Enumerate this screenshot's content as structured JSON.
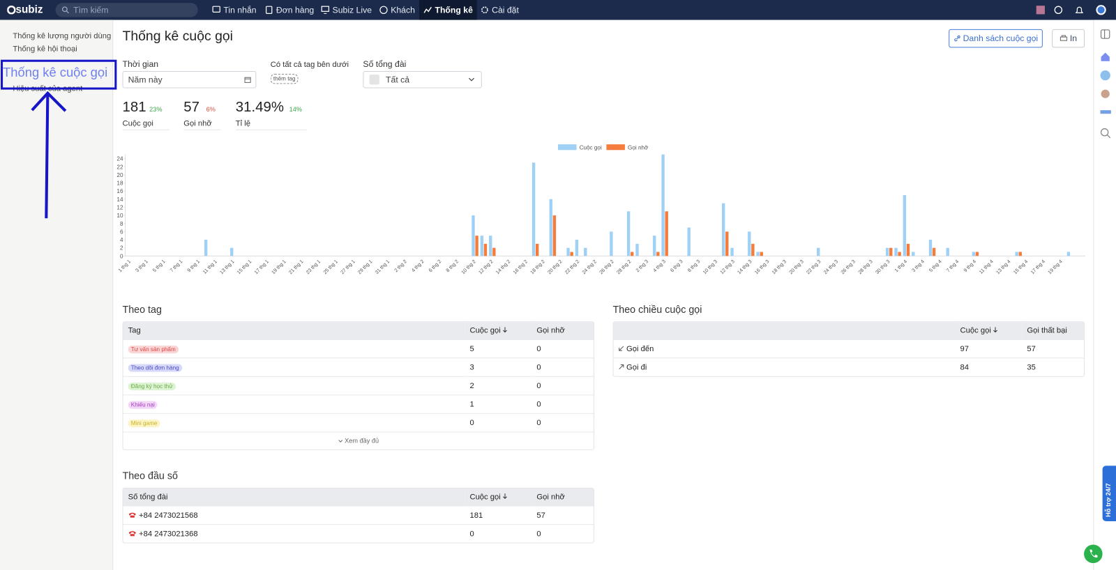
{
  "nav": {
    "logo": "subiz",
    "search": "Tìm kiếm",
    "items": [
      "Tin nhắn",
      "Đơn hàng",
      "Subiz Live",
      "Khách",
      "Thống kê",
      "Cài đặt"
    ]
  },
  "sidebar": {
    "items": [
      "Thống kê lượng người dùng",
      "Thống kê hội thoại",
      "Thống kê cuộc gọi",
      "Hiệu suất của agent"
    ]
  },
  "header": {
    "title": "Thống kê cuộc gọi",
    "buttons": [
      "Danh sách cuộc gọi",
      "In"
    ]
  },
  "filters": {
    "time": {
      "label": "Thời gian",
      "value": "Năm này"
    },
    "tags": {
      "label": "Có tất cả tag bên dưới",
      "button": "thêm tag"
    },
    "line": {
      "label": "Số tổng đài",
      "value": "Tất cả"
    }
  },
  "stats": [
    {
      "value": "181",
      "change": "23%",
      "label": "Cuộc gọi"
    },
    {
      "value": "57",
      "change": "6%",
      "label": "Gọi nhỡ"
    },
    {
      "value": "31.49%",
      "change": "14%",
      "label": "Tỉ lệ"
    }
  ],
  "chart_data": {
    "type": "bar",
    "categories": [
      "1 thg 1",
      null,
      "3 thg 1",
      null,
      "5 thg 1",
      null,
      "7 thg 1",
      null,
      "9 thg 1",
      null,
      "11 thg 1",
      null,
      "13 thg 1",
      null,
      "15 thg 1",
      null,
      "17 thg 1",
      null,
      "19 thg 1",
      null,
      "21 thg 1",
      null,
      "23 thg 1",
      null,
      "25 thg 1",
      null,
      "27 thg 1",
      null,
      "29 thg 1",
      null,
      "31 thg 1",
      null,
      "2 thg 2",
      null,
      "4 thg 2",
      null,
      "6 thg 2",
      null,
      "8 thg 2",
      null,
      "10 thg 2",
      null,
      "12 thg 2",
      null,
      "14 thg 2",
      null,
      "16 thg 2",
      null,
      "18 thg 2",
      null,
      "20 thg 2",
      null,
      "22 thg 2",
      null,
      "24 thg 2",
      null,
      "26 thg 2",
      null,
      "28 thg 2",
      null,
      "2 thg 3",
      null,
      "4 thg 3",
      null,
      "6 thg 3",
      null,
      "8 thg 3",
      null,
      "10 thg 3",
      null,
      "12 thg 3",
      null,
      "14 thg 3",
      null,
      "16 thg 3",
      null,
      "18 thg 3",
      null,
      "20 thg 3",
      null,
      "22 thg 3",
      null,
      "24 thg 3",
      null,
      "26 thg 3",
      null,
      "28 thg 3",
      null,
      "30 thg 3",
      null,
      "1 thg 4",
      null,
      "3 thg 4",
      null,
      "5 thg 4",
      null,
      "7 thg 4",
      null,
      "9 thg 4",
      null,
      "11 thg 4",
      null,
      "13 thg 4",
      null,
      "15 thg 4",
      null,
      "17 thg 4",
      null,
      "19 thg 4",
      null
    ],
    "series": [
      {
        "name": "Cuộc gọi",
        "color": "#9fd0f6",
        "values": [
          0,
          0,
          0,
          0,
          0,
          0,
          0,
          0,
          0,
          4,
          0,
          0,
          2,
          0,
          0,
          0,
          0,
          0,
          0,
          0,
          0,
          0,
          0,
          0,
          0,
          0,
          0,
          0,
          0,
          0,
          0,
          0,
          0,
          0,
          0,
          0,
          0,
          0,
          0,
          0,
          10,
          5,
          5,
          0,
          0,
          0,
          0,
          23,
          0,
          14,
          0,
          2,
          4,
          2,
          0,
          0,
          6,
          0,
          11,
          3,
          0,
          5,
          25,
          0,
          0,
          7,
          0,
          0,
          0,
          13,
          2,
          0,
          6,
          1,
          0,
          0,
          0,
          0,
          0,
          0,
          2,
          0,
          0,
          0,
          0,
          0,
          0,
          0,
          2,
          2,
          15,
          1,
          0,
          4,
          0,
          2,
          0,
          0,
          1,
          0,
          0,
          0,
          0,
          1,
          0,
          0,
          0,
          0,
          0,
          1
        ]
      },
      {
        "name": "Gọi nhỡ",
        "color": "#f47c3c",
        "values": [
          0,
          0,
          0,
          0,
          0,
          0,
          0,
          0,
          0,
          0,
          0,
          0,
          0,
          0,
          0,
          0,
          0,
          0,
          0,
          0,
          0,
          0,
          0,
          0,
          0,
          0,
          0,
          0,
          0,
          0,
          0,
          0,
          0,
          0,
          0,
          0,
          0,
          0,
          0,
          0,
          5,
          3,
          2,
          0,
          0,
          0,
          0,
          3,
          0,
          10,
          0,
          1,
          0,
          0,
          0,
          0,
          0,
          0,
          1,
          0,
          0,
          1,
          11,
          0,
          0,
          0,
          0,
          0,
          0,
          6,
          0,
          0,
          3,
          1,
          0,
          0,
          0,
          0,
          0,
          0,
          0,
          0,
          0,
          0,
          0,
          0,
          0,
          0,
          2,
          1,
          3,
          0,
          0,
          2,
          0,
          0,
          0,
          0,
          1,
          0,
          0,
          0,
          0,
          1,
          0,
          0,
          0,
          0,
          0,
          0
        ]
      }
    ],
    "ylim": [
      0,
      25
    ],
    "yticks": [
      0,
      2,
      4,
      6,
      8,
      10,
      12,
      14,
      16,
      18,
      20,
      22,
      24
    ],
    "grid": false,
    "legend": "top"
  },
  "tag_table": {
    "title": "Theo tag",
    "columns": [
      "Tag",
      "Cuộc gọi",
      "Gọi nhỡ"
    ],
    "rows": [
      [
        "Tư vấn sản phẩm",
        5,
        0
      ],
      [
        "Theo dõi đơn hàng",
        3,
        0
      ],
      [
        "Đăng ký học thử",
        2,
        0
      ],
      [
        "Khiếu nại",
        1,
        0
      ],
      [
        "Mini game",
        0,
        0
      ]
    ],
    "more": "Xem đầy đủ"
  },
  "direction_table": {
    "title": "Theo chiều cuộc gọi",
    "columns": [
      "Cuộc gọi",
      "Gọi thất bại"
    ],
    "rows": [
      [
        "Gọi đến",
        97,
        57
      ],
      [
        "Gọi đi",
        84,
        35
      ]
    ]
  },
  "number_table": {
    "title": "Theo đầu số",
    "columns": [
      "Số tổng đài",
      "Cuộc gọi",
      "Gọi nhỡ"
    ],
    "rows": [
      [
        "+84 2473021568",
        181,
        57
      ],
      [
        "+84 2473021368",
        0,
        0
      ]
    ]
  },
  "support": "Hỗ trợ 24/7"
}
